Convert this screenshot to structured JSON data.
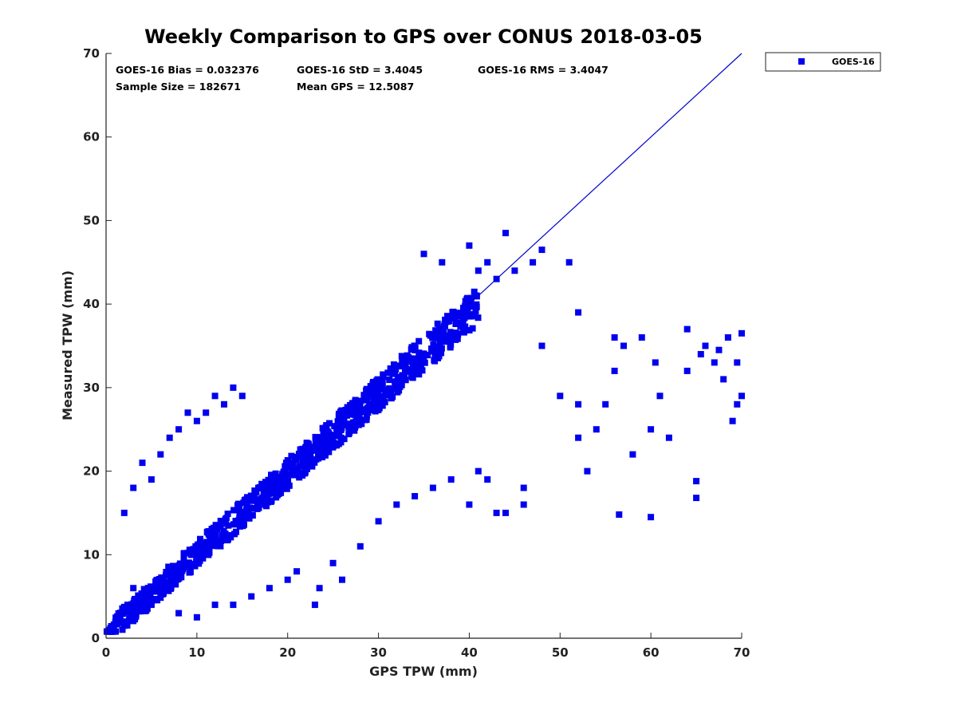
{
  "chart_data": {
    "type": "scatter",
    "title": "Weekly Comparison to GPS over CONUS 2018-03-05",
    "xlabel": "GPS TPW (mm)",
    "ylabel": "Measured TPW (mm)",
    "xlim": [
      0,
      70
    ],
    "ylim": [
      0,
      70
    ],
    "xticks": [
      0,
      10,
      20,
      30,
      40,
      50,
      60,
      70
    ],
    "yticks": [
      0,
      10,
      20,
      30,
      40,
      50,
      60,
      70
    ],
    "grid": false,
    "legend_position": "outside-top-right",
    "colors": {
      "series": "#0000ee",
      "line": "#0000cc",
      "axis": "#222222"
    },
    "reference_line": {
      "type": "one-to-one",
      "from": [
        40,
        40
      ],
      "to": [
        70,
        70
      ]
    },
    "stats": [
      "GOES-16 Bias = 0.032376",
      "GOES-16 StD = 3.4045",
      "GOES-16 RMS = 3.4047",
      "Sample Size = 182671",
      "Mean GPS = 12.5087"
    ],
    "series": [
      {
        "name": "GOES-16",
        "marker": "square",
        "band": {
          "x_range": [
            0,
            41
          ],
          "slope": 0.96,
          "intercept": 0.5,
          "half_width": 2.2
        },
        "outliers": [
          [
            2,
            15
          ],
          [
            3,
            18
          ],
          [
            4,
            21
          ],
          [
            5,
            19
          ],
          [
            6,
            22
          ],
          [
            7,
            24
          ],
          [
            8,
            25
          ],
          [
            9,
            27
          ],
          [
            10,
            26
          ],
          [
            11,
            27
          ],
          [
            12,
            29
          ],
          [
            13,
            28
          ],
          [
            14,
            30
          ],
          [
            15,
            29
          ],
          [
            3,
            6
          ],
          [
            5,
            4
          ],
          [
            8,
            3
          ],
          [
            10,
            2.5
          ],
          [
            12,
            4
          ],
          [
            14,
            4
          ],
          [
            16,
            5
          ],
          [
            18,
            6
          ],
          [
            20,
            7
          ],
          [
            21,
            8
          ],
          [
            23,
            4
          ],
          [
            23.5,
            6
          ],
          [
            25,
            9
          ],
          [
            26,
            7
          ],
          [
            28,
            11
          ],
          [
            30,
            14
          ],
          [
            32,
            16
          ],
          [
            34,
            17
          ],
          [
            36,
            18
          ],
          [
            38,
            19
          ],
          [
            40,
            16
          ],
          [
            41,
            20
          ],
          [
            42,
            19
          ],
          [
            43,
            15
          ],
          [
            44,
            15
          ],
          [
            46,
            16
          ],
          [
            46,
            18
          ],
          [
            35,
            46
          ],
          [
            37,
            45
          ],
          [
            40,
            47
          ],
          [
            41,
            44
          ],
          [
            42,
            45
          ],
          [
            43,
            43
          ],
          [
            44,
            48.5
          ],
          [
            45,
            44
          ],
          [
            47,
            45
          ],
          [
            48,
            46.5
          ],
          [
            51,
            45
          ],
          [
            48,
            35
          ],
          [
            50,
            29
          ],
          [
            52,
            39
          ],
          [
            52,
            28
          ],
          [
            52,
            24
          ],
          [
            53,
            20
          ],
          [
            54,
            25
          ],
          [
            55,
            28
          ],
          [
            56,
            36
          ],
          [
            56,
            32
          ],
          [
            57,
            35
          ],
          [
            58,
            22
          ],
          [
            56.5,
            14.8
          ],
          [
            59,
            36
          ],
          [
            60,
            14.5
          ],
          [
            60,
            25
          ],
          [
            60.5,
            33
          ],
          [
            61,
            29
          ],
          [
            62,
            24
          ],
          [
            64,
            37
          ],
          [
            64,
            32
          ],
          [
            65,
            18.8
          ],
          [
            65,
            16.8
          ],
          [
            65.5,
            34
          ],
          [
            66,
            35
          ],
          [
            67,
            33
          ],
          [
            68,
            31
          ],
          [
            68.5,
            36
          ],
          [
            69,
            26
          ],
          [
            69.5,
            33
          ],
          [
            70,
            36.5
          ],
          [
            70,
            29
          ],
          [
            69.5,
            28
          ],
          [
            67.5,
            34.5
          ]
        ]
      }
    ]
  }
}
